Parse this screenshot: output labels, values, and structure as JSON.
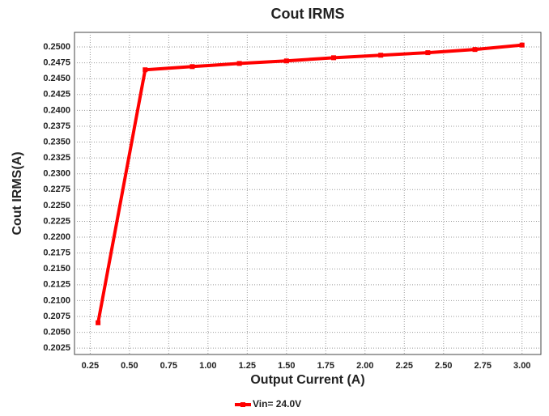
{
  "chart_data": {
    "type": "line",
    "title": "Cout IRMS",
    "x_label": "Output Current (A)",
    "y_label": "Cout IRMS(A)",
    "x": [
      0.3,
      0.6,
      0.9,
      1.2,
      1.5,
      1.8,
      2.1,
      2.4,
      2.7,
      3.0
    ],
    "series": [
      {
        "name": "Vin= 24.0V",
        "color": "#ff0000",
        "values": [
          0.2065,
          0.2464,
          0.2469,
          0.2474,
          0.2478,
          0.2483,
          0.2487,
          0.2491,
          0.2496,
          0.2503
        ]
      }
    ],
    "xlim": [
      0.15,
      3.12
    ],
    "ylim": [
      0.2015,
      0.2523
    ],
    "xticks": [
      0.25,
      {
        "value": 0.5,
        "label": "0.50"
      },
      0.75,
      {
        "value": 1,
        "label": "1.00"
      },
      1.25,
      {
        "value": 1.5,
        "label": "1.50"
      },
      1.75,
      {
        "value": 2,
        "label": "2.00"
      },
      2.25,
      {
        "value": 2.5,
        "label": "2.50"
      },
      2.75,
      {
        "value": 3,
        "label": "3.00"
      }
    ],
    "yticks": [
      {
        "value": 0.2025,
        "label": "0.2025"
      },
      {
        "value": 0.205,
        "label": "0.2050"
      },
      {
        "value": 0.2075,
        "label": "0.2075"
      },
      {
        "value": 0.21,
        "label": "0.2100"
      },
      {
        "value": 0.2125,
        "label": "0.2125"
      },
      {
        "value": 0.215,
        "label": "0.2150"
      },
      {
        "value": 0.2175,
        "label": "0.2175"
      },
      {
        "value": 0.22,
        "label": "0.2200"
      },
      {
        "value": 0.2225,
        "label": "0.2225"
      },
      {
        "value": 0.225,
        "label": "0.2250"
      },
      {
        "value": 0.2275,
        "label": "0.2275"
      },
      {
        "value": 0.23,
        "label": "0.2300"
      },
      {
        "value": 0.2325,
        "label": "0.2325"
      },
      {
        "value": 0.235,
        "label": "0.2350"
      },
      {
        "value": 0.2375,
        "label": "0.2375"
      },
      {
        "value": 0.24,
        "label": "0.2400"
      },
      {
        "value": 0.2425,
        "label": "0.2425"
      },
      {
        "value": 0.245,
        "label": "0.2450"
      },
      {
        "value": 0.2475,
        "label": "0.2475"
      },
      {
        "value": 0.25,
        "label": "0.2500"
      }
    ],
    "grid": true,
    "legend": "bottom"
  }
}
